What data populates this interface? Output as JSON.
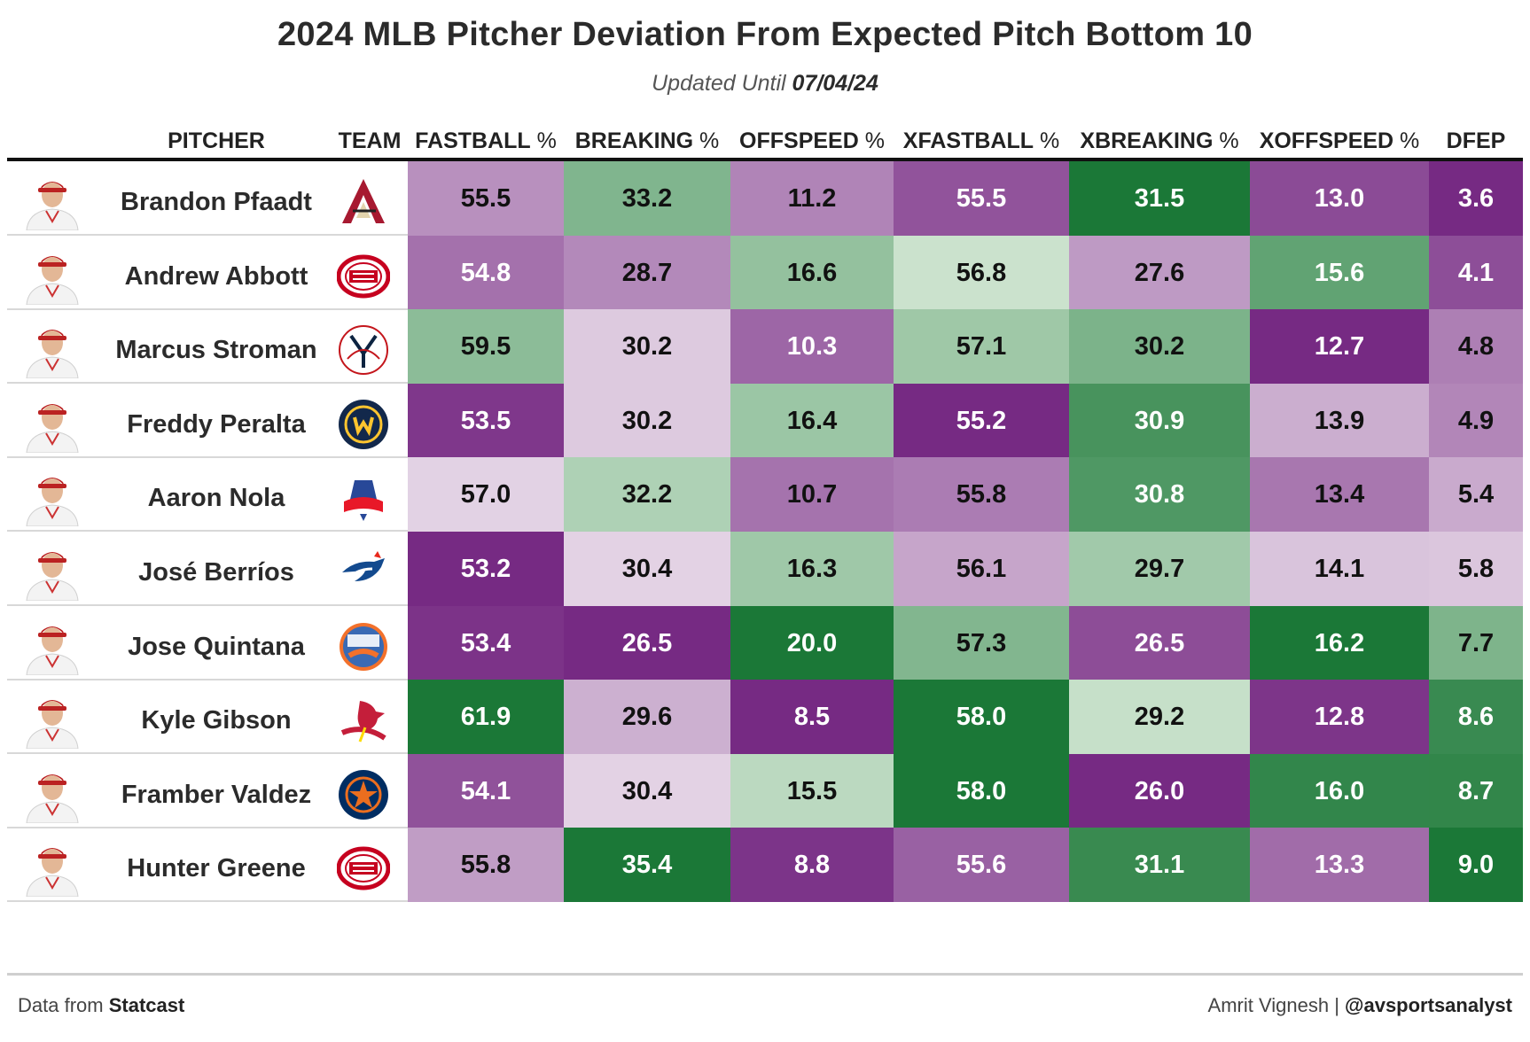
{
  "title": "2024 MLB Pitcher Deviation From Expected Pitch Bottom 10",
  "subtitle_prefix": "Updated Until ",
  "subtitle_date": "07/04/24",
  "footer": {
    "source_prefix": "Data from ",
    "source_name": "Statcast",
    "author": "Amrit Vignesh | ",
    "handle": "@avsportsanalyst"
  },
  "colors": {
    "purple_dark": "#762a83",
    "purple_light": "#f2eaf2",
    "green_dark": "#1b7837",
    "green_light": "#e8f4e6"
  },
  "chart_data": {
    "type": "table",
    "columns": [
      {
        "key": "pitcher",
        "label": "PITCHER",
        "pct": ""
      },
      {
        "key": "team",
        "label": "TEAM",
        "pct": ""
      },
      {
        "key": "fastball",
        "label": "FASTBALL",
        "pct": "%"
      },
      {
        "key": "breaking",
        "label": "BREAKING",
        "pct": "%"
      },
      {
        "key": "offspeed",
        "label": "OFFSPEED",
        "pct": "%"
      },
      {
        "key": "xfastball",
        "label": "XFASTBALL",
        "pct": "%"
      },
      {
        "key": "xbreaking",
        "label": "XBREAKING",
        "pct": "%"
      },
      {
        "key": "xoffspeed",
        "label": "XOFFSPEED",
        "pct": "%"
      },
      {
        "key": "dfep",
        "label": "DFEP",
        "pct": ""
      }
    ],
    "rows": [
      {
        "pitcher": "Brandon Pfaadt",
        "team_icon": "diamondbacks-logo-icon",
        "values": [
          "55.5",
          "33.2",
          "11.2",
          "55.5",
          "31.5",
          "13.0",
          "3.6"
        ]
      },
      {
        "pitcher": "Andrew Abbott",
        "team_icon": "reds-logo-icon",
        "values": [
          "54.8",
          "28.7",
          "16.6",
          "56.8",
          "27.6",
          "15.6",
          "4.1"
        ]
      },
      {
        "pitcher": "Marcus Stroman",
        "team_icon": "yankees-logo-icon",
        "values": [
          "59.5",
          "30.2",
          "10.3",
          "57.1",
          "30.2",
          "12.7",
          "4.8"
        ]
      },
      {
        "pitcher": "Freddy Peralta",
        "team_icon": "brewers-logo-icon",
        "values": [
          "53.5",
          "30.2",
          "16.4",
          "55.2",
          "30.9",
          "13.9",
          "4.9"
        ]
      },
      {
        "pitcher": "Aaron Nola",
        "team_icon": "phillies-logo-icon",
        "values": [
          "57.0",
          "32.2",
          "10.7",
          "55.8",
          "30.8",
          "13.4",
          "5.4"
        ]
      },
      {
        "pitcher": "José Berríos",
        "team_icon": "blue-jays-logo-icon",
        "values": [
          "53.2",
          "30.4",
          "16.3",
          "56.1",
          "29.7",
          "14.1",
          "5.8"
        ]
      },
      {
        "pitcher": "Jose Quintana",
        "team_icon": "mets-logo-icon",
        "values": [
          "53.4",
          "26.5",
          "20.0",
          "57.3",
          "26.5",
          "16.2",
          "7.7"
        ]
      },
      {
        "pitcher": "Kyle Gibson",
        "team_icon": "cardinals-logo-icon",
        "values": [
          "61.9",
          "29.6",
          "8.5",
          "58.0",
          "29.2",
          "12.8",
          "8.6"
        ]
      },
      {
        "pitcher": "Framber Valdez",
        "team_icon": "astros-logo-icon",
        "values": [
          "54.1",
          "30.4",
          "15.5",
          "58.0",
          "26.0",
          "16.0",
          "8.7"
        ]
      },
      {
        "pitcher": "Hunter Greene",
        "team_icon": "reds-logo-icon",
        "values": [
          "55.8",
          "35.4",
          "8.8",
          "55.6",
          "31.1",
          "13.3",
          "9.0"
        ]
      }
    ]
  }
}
